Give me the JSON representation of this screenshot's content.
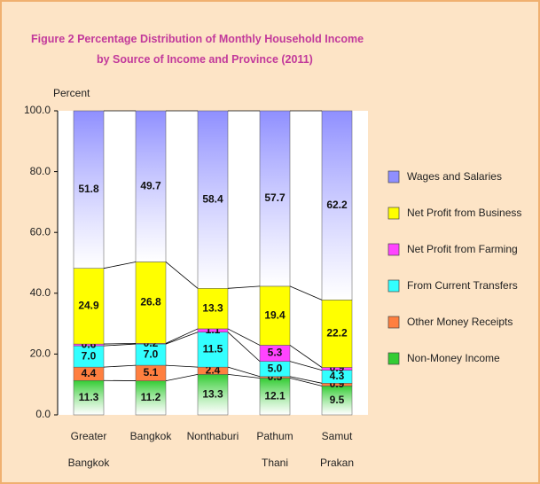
{
  "chart_data": {
    "type": "stacked_bar",
    "title_lines": [
      "Figure  2  Percentage Distribution of Monthly Household Income",
      "by Source of Income and Province (2011)"
    ],
    "y_label": "Percent",
    "categories": [
      "Greater Bangkok",
      "Bangkok",
      "Nonthaburi",
      "Pathum Thani",
      "Samut Prakan"
    ],
    "series": [
      {
        "name": "Non-Money Income",
        "color": "#33cc33",
        "values": [
          11.3,
          11.2,
          13.3,
          12.1,
          9.5
        ],
        "value_labels": [
          "11.3",
          "11.2",
          "13.3",
          "12.1",
          "9.5"
        ]
      },
      {
        "name": "Other Money Receipts",
        "color": "#ff7f3f",
        "values": [
          4.4,
          5.1,
          2.4,
          0.5,
          0.9
        ],
        "value_labels": [
          "4.4",
          "5.1",
          "2.4",
          "0.5",
          "0.9"
        ]
      },
      {
        "name": "From Current Transfers",
        "color": "#33ffff",
        "values": [
          7.0,
          7.0,
          11.5,
          5.0,
          4.3
        ],
        "value_labels": [
          "7.0",
          "7.0",
          "11.5",
          "5.0",
          "4.3"
        ]
      },
      {
        "name": "Net Profit from Farming",
        "color": "#ff44ff",
        "values": [
          0.6,
          0.2,
          1.1,
          5.3,
          0.9
        ],
        "value_labels": [
          "0.6",
          "0.2",
          "1.1",
          "5.3",
          "0.9"
        ]
      },
      {
        "name": "Net Profit from Business",
        "color": "#ffff00",
        "values": [
          24.9,
          26.8,
          13.3,
          19.4,
          22.2
        ],
        "value_labels": [
          "24.9",
          "26.8",
          "13.3",
          "19.4",
          "22.2"
        ]
      },
      {
        "name": "Wages and Salaries",
        "color": "#8f8fff",
        "values": [
          51.8,
          49.7,
          58.4,
          57.7,
          62.2
        ],
        "value_labels": [
          "51.8",
          "49.7",
          "58.4",
          "57.7",
          "62.2"
        ]
      }
    ],
    "ylim": [
      0,
      100
    ],
    "yticks": [
      {
        "value": 0,
        "label": "0.0"
      },
      {
        "value": 20,
        "label": "20.0"
      },
      {
        "value": 40,
        "label": "40.0"
      },
      {
        "value": 60,
        "label": "60.0"
      },
      {
        "value": 80,
        "label": "80.0"
      },
      {
        "value": 100,
        "label": "100.0"
      }
    ],
    "legend": "right",
    "connectors": true
  }
}
